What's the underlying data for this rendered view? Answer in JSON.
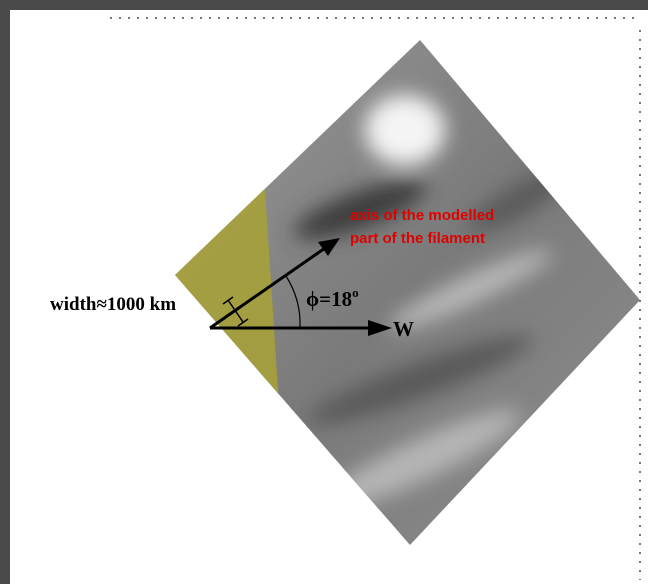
{
  "annotations": {
    "axis_label": [
      "axis of the modelled",
      "part of the filament"
    ],
    "width_label": "width≈1000 km",
    "angle_label": "ϕ=18",
    "angle_unit": "o",
    "direction_label": "W"
  }
}
